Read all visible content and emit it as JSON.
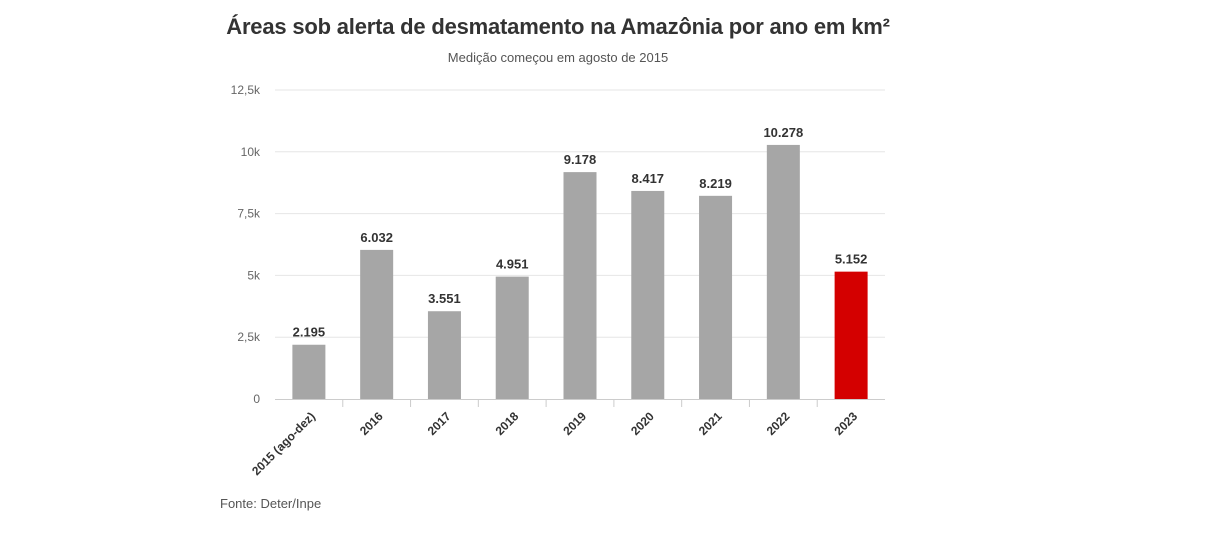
{
  "chart_data": {
    "type": "bar",
    "title": "Áreas sob alerta de desmatamento na Amazônia por ano em km²",
    "subtitle": "Medição começou em agosto de 2015",
    "categories": [
      "2015 (ago-dez)",
      "2016",
      "2017",
      "2018",
      "2019",
      "2020",
      "2021",
      "2022",
      "2023"
    ],
    "values": [
      2195,
      6032,
      3551,
      4951,
      9178,
      8417,
      8219,
      10278,
      5152
    ],
    "value_labels": [
      "2.195",
      "6.032",
      "3.551",
      "4.951",
      "9.178",
      "8.417",
      "8.219",
      "10.278",
      "5.152"
    ],
    "ylim": [
      0,
      12500
    ],
    "yticks": [
      0,
      2500,
      5000,
      7500,
      10000,
      12500
    ],
    "ytick_labels": [
      "0",
      "2,5k",
      "5k",
      "7,5k",
      "10k",
      "12,5k"
    ],
    "grid": true,
    "bar_color": "#a6a6a6",
    "highlight_color": "#d40000",
    "highlight_index": 8,
    "source": "Fonte: Deter/Inpe"
  }
}
